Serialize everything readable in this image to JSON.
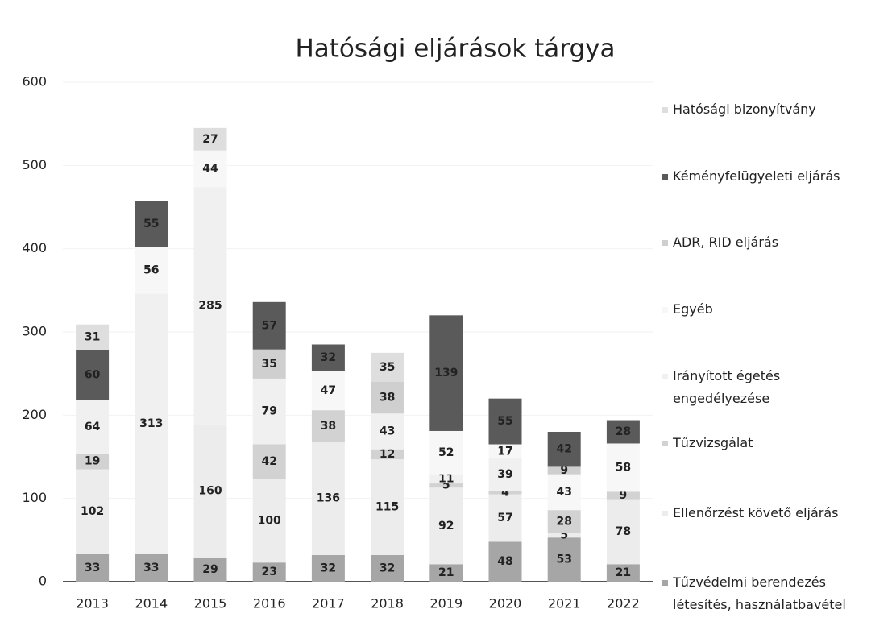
{
  "chart_data": {
    "type": "stacked_bar",
    "title": "Hatósági eljárások tárgya",
    "categories": [
      "2013",
      "2014",
      "2015",
      "2016",
      "2017",
      "2018",
      "2019",
      "2020",
      "2021",
      "2022"
    ],
    "series": [
      {
        "name": "Tűzvédelmi berendezés létesítés, használatbavétel",
        "color": "#a6a6a6",
        "values": [
          33,
          33,
          29,
          23,
          32,
          32,
          21,
          48,
          53,
          21
        ]
      },
      {
        "name": "Ellenőrzést követő eljárás",
        "color": "#ececec",
        "values": [
          102,
          0,
          160,
          100,
          136,
          115,
          92,
          57,
          5,
          78
        ]
      },
      {
        "name": "Tűzvizsgálat",
        "color": "#d2d2d2",
        "values": [
          19,
          0,
          0,
          42,
          38,
          12,
          5,
          4,
          28,
          9
        ]
      },
      {
        "name": "Irányított égetés engedélyezése",
        "color": "#f0f0f0",
        "values": [
          64,
          313,
          285,
          79,
          0,
          43,
          11,
          39,
          0,
          0
        ]
      },
      {
        "name": "Egyéb",
        "color": "#f7f7f7",
        "values": [
          0,
          56,
          44,
          0,
          47,
          0,
          52,
          17,
          43,
          58
        ]
      },
      {
        "name": "ADR, RID eljárás",
        "color": "#cfcfcf",
        "values": [
          0,
          0,
          0,
          35,
          0,
          38,
          0,
          0,
          9,
          0
        ]
      },
      {
        "name": "Kéményfelügyeleti eljárás",
        "color": "#5a5a5a",
        "values": [
          60,
          55,
          0,
          57,
          32,
          0,
          139,
          55,
          42,
          28
        ]
      },
      {
        "name": "Hatósági bizonyítvány",
        "color": "#dedede",
        "values": [
          31,
          0,
          27,
          0,
          0,
          35,
          0,
          0,
          0,
          0
        ]
      }
    ],
    "ylim": [
      0,
      600
    ],
    "yticks": [
      0,
      100,
      200,
      300,
      400,
      500,
      600
    ],
    "grid": true
  }
}
